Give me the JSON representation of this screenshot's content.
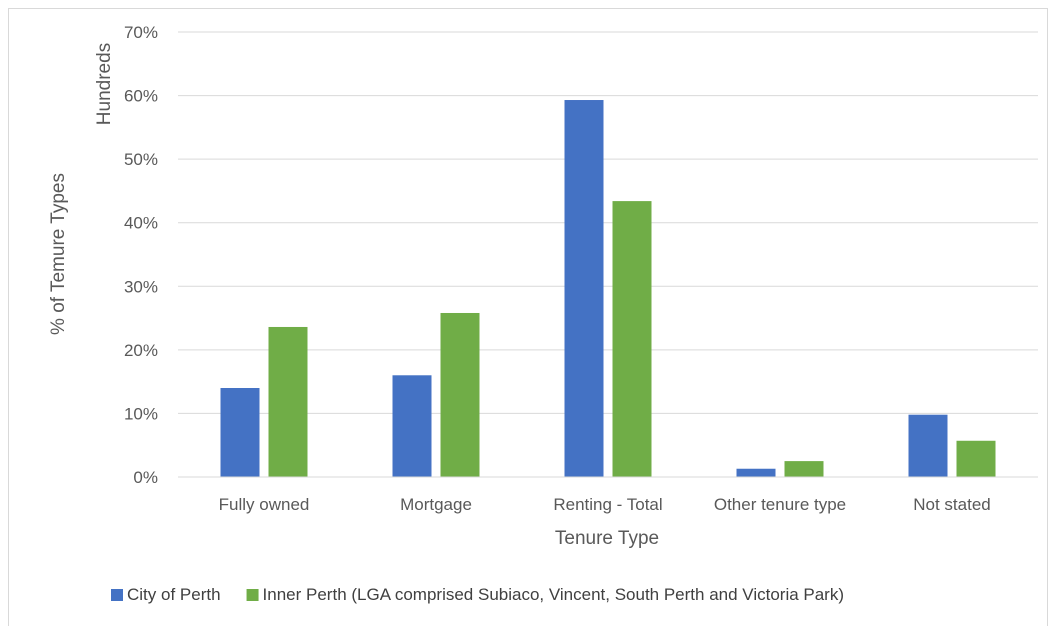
{
  "chart_data": {
    "type": "bar",
    "categories": [
      "Fully owned",
      "Mortgage",
      "Renting - Total",
      "Other tenure type",
      "Not stated"
    ],
    "series": [
      {
        "name": "City of Perth",
        "values": [
          14,
          16,
          59.3,
          1.3,
          9.8
        ],
        "color": "#4472c4"
      },
      {
        "name": "Inner Perth (LGA comprised Subiaco, Vincent, South Perth and Victoria Park)",
        "values": [
          23.6,
          25.8,
          43.4,
          2.5,
          5.7
        ],
        "color": "#70ad47"
      }
    ],
    "ylim": [
      0,
      70
    ],
    "yticks": [
      "0%",
      "10%",
      "20%",
      "30%",
      "40%",
      "50%",
      "60%",
      "70%"
    ],
    "xlabel": "Tenure Type",
    "ylabel": "% of Temure Types",
    "display_unit": "Hundreds",
    "grid": true,
    "legend_position": "bottom"
  }
}
